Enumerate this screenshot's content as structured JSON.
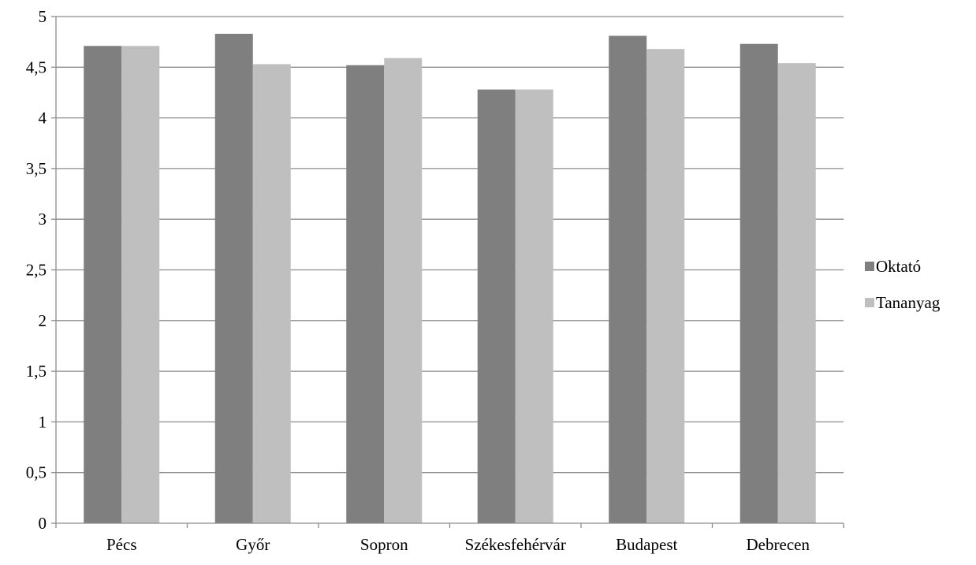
{
  "chart_data": {
    "type": "bar",
    "categories": [
      "Pécs",
      "Győr",
      "Sopron",
      "Székesfehérvár",
      "Budapest",
      "Debrecen"
    ],
    "series": [
      {
        "name": "Oktató",
        "values": [
          4.71,
          4.83,
          4.52,
          4.28,
          4.81,
          4.73
        ]
      },
      {
        "name": "Tananyag",
        "values": [
          4.71,
          4.53,
          4.59,
          4.28,
          4.68,
          4.54
        ]
      }
    ],
    "y_ticks": [
      "0",
      "0,5",
      "1",
      "1,5",
      "2",
      "2,5",
      "3",
      "3,5",
      "4",
      "4,5",
      "5"
    ],
    "ylim": [
      0,
      5
    ],
    "grid": true,
    "legend_position": "right",
    "colors": {
      "Oktató": "#7f7f7f",
      "Tananyag": "#bfbfbf",
      "grid": "#8c8c8c",
      "axis": "#8c8c8c"
    }
  }
}
